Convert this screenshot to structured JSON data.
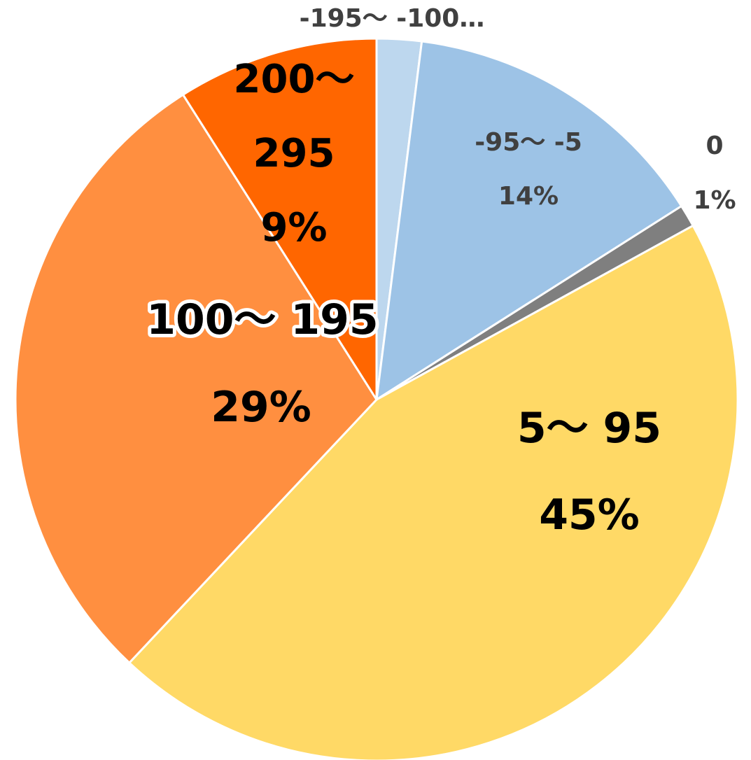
{
  "chart_data": {
    "type": "pie",
    "title": "",
    "slices": [
      {
        "category": "-195～ -100…",
        "value": 2,
        "label_line1": "-195～ -100…",
        "label_line2": "",
        "color": "#BDD7EE"
      },
      {
        "category": "-95～ -5",
        "value": 14,
        "label_line1": "-95～ -5",
        "label_line2": "14%",
        "color": "#9DC3E6"
      },
      {
        "category": "0",
        "value": 1,
        "label_line1": "0",
        "label_line2": "1%",
        "color": "#7F7F7F"
      },
      {
        "category": "5～ 95",
        "value": 45,
        "label_line1": "5～ 95",
        "label_line2": "45%",
        "color": "#FFD966"
      },
      {
        "category": "100～ 195",
        "value": 29,
        "label_line1": "100～ 195",
        "label_line2": "29%",
        "color": "#FF8F40"
      },
      {
        "category": "200～ 295",
        "value": 9,
        "label_line1": "200～",
        "label_line2": "295",
        "label_line3": "9%",
        "color": "#FF6600"
      }
    ],
    "start_angle_deg": 0,
    "direction": "clockwise",
    "legend": "none"
  }
}
